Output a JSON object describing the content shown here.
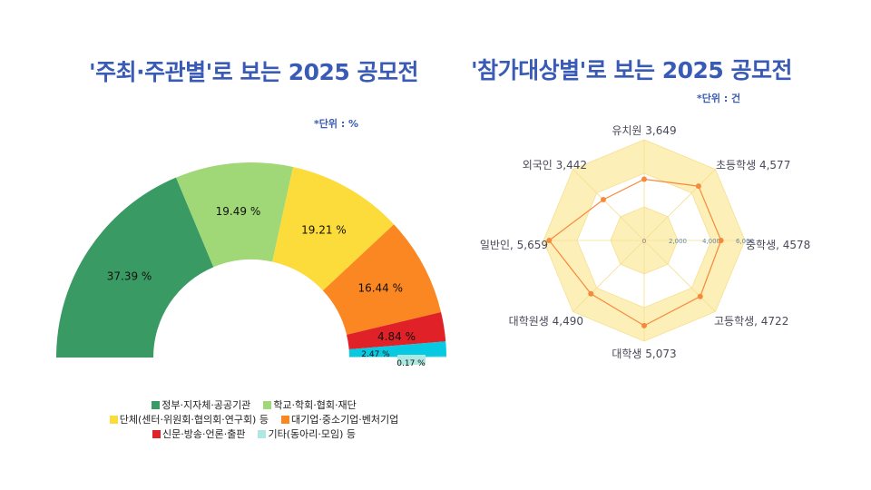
{
  "left_panel": {
    "title": "'주최·주관별'로 보는 2025 공모전",
    "unit": "*단위 : %"
  },
  "right_panel": {
    "title": "'참가대상별'로 보는 2025 공모전",
    "unit": "*단위 : 건"
  },
  "chart_data": [
    {
      "type": "pie",
      "subtype": "half-donut",
      "title": "'주최·주관별'로 보는 2025 공모전",
      "unit": "%",
      "slices": [
        {
          "name": "정부·지자체·공공기관",
          "value": 37.39,
          "label": "37.39 %",
          "color": "#3a9a64"
        },
        {
          "name": "학교·학회·협회·재단",
          "value": 19.49,
          "label": "19.49 %",
          "color": "#a1d877"
        },
        {
          "name": "단체(센터·위원회·협의회·연구회) 등",
          "value": 19.21,
          "label": "19.21 %",
          "color": "#fcdc3a"
        },
        {
          "name": "대기업·중소기업·벤처기업",
          "value": 16.44,
          "label": "16.44 %",
          "color": "#fb8722"
        },
        {
          "name": "신문·방송·언론·출판",
          "value": 4.84,
          "label": "4.84 %",
          "color": "#e02128"
        },
        {
          "name": "",
          "value": 2.47,
          "label": "2.47 %",
          "color": "#07c9e2"
        },
        {
          "name": "기타(동아리·모임) 등",
          "value": 0.17,
          "label": "0.17 %",
          "color": "#aee8e2"
        }
      ],
      "legend": [
        {
          "label": "정부·지자체·공공기관",
          "color": "#3a9a64"
        },
        {
          "label": "학교·학회·협회·재단",
          "color": "#a1d877"
        },
        {
          "label": "단체(센터·위원회·협의회·연구회) 등",
          "color": "#fcdc3a"
        },
        {
          "label": "대기업·중소기업·벤처기업",
          "color": "#fb8722"
        },
        {
          "label": "신문·방송·언론·출판",
          "color": "#e02128"
        },
        {
          "label": "기타(동아리·모임) 등",
          "color": "#aee8e2"
        }
      ],
      "legend_position": "bottom"
    },
    {
      "type": "radar",
      "title": "'참가대상별'로 보는 2025 공모전",
      "unit": "건",
      "axes": [
        {
          "name": "유치원",
          "value": 3649,
          "label": "유치원 3,649"
        },
        {
          "name": "초등학생",
          "value": 4577,
          "label": "초등학생 4,577"
        },
        {
          "name": "중학생",
          "value": 4578,
          "label": "중학생, 4578"
        },
        {
          "name": "고등학생",
          "value": 4722,
          "label": "고등학생, 4722"
        },
        {
          "name": "대학생",
          "value": 5073,
          "label": "대학생 5,073"
        },
        {
          "name": "대학원생",
          "value": 4490,
          "label": "대학원생 4,490"
        },
        {
          "name": "일반인",
          "value": 5659,
          "label": "일반인, 5,659"
        },
        {
          "name": "외국인",
          "value": 3442,
          "label": "외국인 3,442"
        }
      ],
      "range": [
        0,
        6000
      ],
      "ticks": [
        "0",
        "2,000",
        "4,000",
        "6,000"
      ],
      "band_color": "#fdefb8",
      "line_color": "#f58a3c"
    }
  ]
}
